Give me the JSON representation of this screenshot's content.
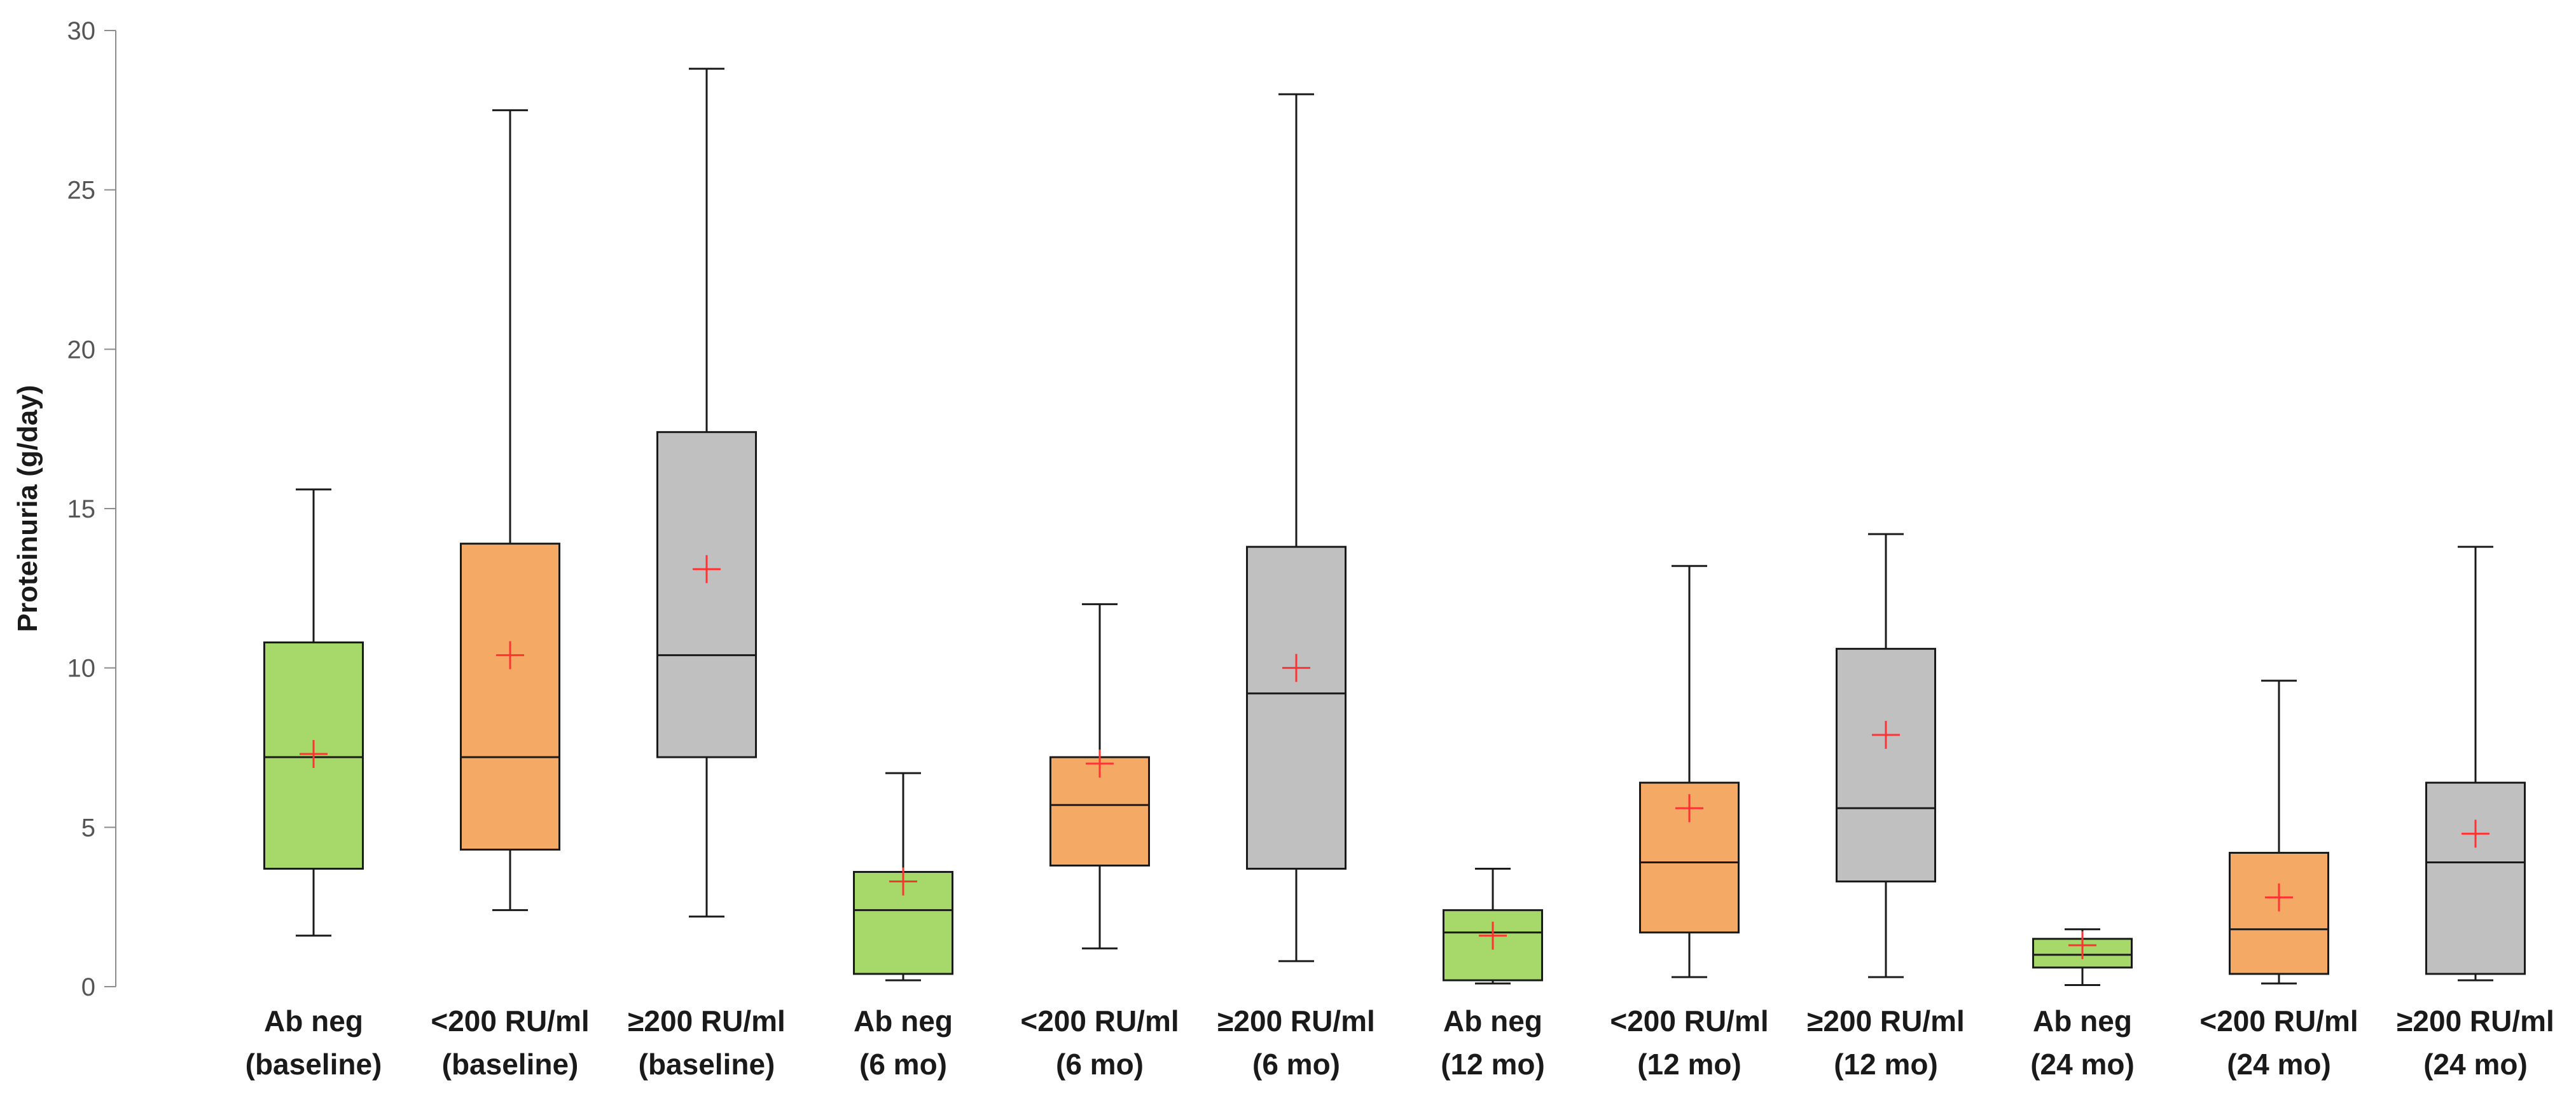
{
  "chart_data": {
    "type": "boxplot",
    "title": "",
    "xlabel": "",
    "ylabel": "Proteinuria  (g/day)",
    "ylim": [
      0,
      30
    ],
    "yticks": [
      0,
      5,
      10,
      15,
      20,
      25,
      30
    ],
    "grid": false,
    "legend": "none",
    "colors": {
      "Ab neg": "#a6d96a",
      "<200 RU/ml": "#f4aa64",
      "≥200 RU/ml": "#c0c0c0",
      "mean_marker": "#ff3333",
      "line": "#1a1a1a"
    },
    "categories": [
      {
        "label1": "Ab neg",
        "label2": "(baseline)",
        "group": "Ab neg",
        "min": 1.6,
        "q1": 3.7,
        "median": 7.2,
        "q3": 10.8,
        "max": 15.6,
        "mean": 7.3
      },
      {
        "label1": "<200 RU/ml",
        "label2": "(baseline)",
        "group": "<200 RU/ml",
        "min": 2.4,
        "q1": 4.3,
        "median": 7.2,
        "q3": 13.9,
        "max": 27.5,
        "mean": 10.4
      },
      {
        "label1": "≥200 RU/ml",
        "label2": "(baseline)",
        "group": "≥200 RU/ml",
        "min": 2.2,
        "q1": 7.2,
        "median": 10.4,
        "q3": 17.4,
        "max": 28.8,
        "mean": 13.1
      },
      {
        "label1": "Ab neg",
        "label2": "(6 mo)",
        "group": "Ab neg",
        "min": 0.2,
        "q1": 0.4,
        "median": 2.4,
        "q3": 3.6,
        "max": 6.7,
        "mean": 3.3
      },
      {
        "label1": "<200 RU/ml",
        "label2": "(6 mo)",
        "group": "<200 RU/ml",
        "min": 1.2,
        "q1": 3.8,
        "median": 5.7,
        "q3": 7.2,
        "max": 12.0,
        "mean": 7.0
      },
      {
        "label1": "≥200 RU/ml",
        "label2": "(6 mo)",
        "group": "≥200 RU/ml",
        "min": 0.8,
        "q1": 3.7,
        "median": 9.2,
        "q3": 13.8,
        "max": 28.0,
        "mean": 10.0
      },
      {
        "label1": "Ab neg",
        "label2": "(12 mo)",
        "group": "Ab neg",
        "min": 0.1,
        "q1": 0.2,
        "median": 1.7,
        "q3": 2.4,
        "max": 3.7,
        "mean": 1.6
      },
      {
        "label1": "<200 RU/ml",
        "label2": "(12 mo)",
        "group": "<200 RU/ml",
        "min": 0.3,
        "q1": 1.7,
        "median": 3.9,
        "q3": 6.4,
        "max": 13.2,
        "mean": 5.6
      },
      {
        "label1": "≥200 RU/ml",
        "label2": "(12 mo)",
        "group": "≥200 RU/ml",
        "min": 0.3,
        "q1": 3.3,
        "median": 5.6,
        "q3": 10.6,
        "max": 14.2,
        "mean": 7.9
      },
      {
        "label1": "Ab neg",
        "label2": "(24 mo)",
        "group": "Ab neg",
        "min": 0.05,
        "q1": 0.6,
        "median": 1.0,
        "q3": 1.5,
        "max": 1.8,
        "mean": 1.3
      },
      {
        "label1": "<200 RU/ml",
        "label2": "(24 mo)",
        "group": "<200 RU/ml",
        "min": 0.1,
        "q1": 0.4,
        "median": 1.8,
        "q3": 4.2,
        "max": 9.6,
        "mean": 2.8
      },
      {
        "label1": "≥200 RU/ml",
        "label2": "(24 mo)",
        "group": "≥200 RU/ml",
        "min": 0.2,
        "q1": 0.4,
        "median": 3.9,
        "q3": 6.4,
        "max": 13.8,
        "mean": 4.8
      }
    ]
  }
}
